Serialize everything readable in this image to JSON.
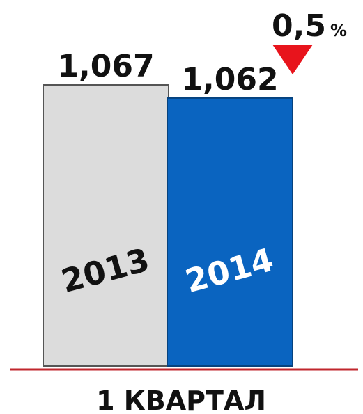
{
  "chart_data": {
    "type": "bar",
    "categories": [
      "2013",
      "2014"
    ],
    "values": [
      1.067,
      1.062
    ],
    "value_labels": [
      "1,067",
      "1,062"
    ],
    "ylim": [
      0.96,
      1.067
    ],
    "xlabel": "1 КВАРТАЛ",
    "change": {
      "value": "0,5",
      "unit": "%",
      "direction": "down"
    }
  },
  "colors": {
    "bar_2013": "#dcdcdc",
    "bar_2014": "#0a64c0",
    "baseline": "#c0262c",
    "triangle": "#e8141c",
    "text_dark": "#111111",
    "text_light": "#ffffff"
  }
}
